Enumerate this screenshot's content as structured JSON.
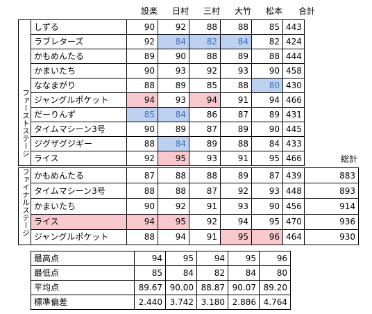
{
  "header": {
    "judges": [
      "設楽",
      "日村",
      "三村",
      "大竹",
      "松本"
    ],
    "total": "合計"
  },
  "first_stage": {
    "label": "ファーストステージ",
    "rows": [
      {
        "name": "しずる",
        "scores": [
          "90",
          "92",
          "88",
          "88",
          "85"
        ],
        "total": "443"
      },
      {
        "name": "ラブレターズ",
        "scores": [
          "92",
          "84",
          "82",
          "84",
          "82"
        ],
        "total": "424"
      },
      {
        "name": "かもめんたる",
        "scores": [
          "89",
          "90",
          "88",
          "89",
          "88"
        ],
        "total": "444"
      },
      {
        "name": "かまいたち",
        "scores": [
          "90",
          "93",
          "92",
          "93",
          "90"
        ],
        "total": "458"
      },
      {
        "name": "ななまがり",
        "scores": [
          "88",
          "89",
          "85",
          "88",
          "80"
        ],
        "total": "430"
      },
      {
        "name": "ジャングルポケット",
        "scores": [
          "94",
          "93",
          "94",
          "91",
          "94"
        ],
        "total": "466"
      },
      {
        "name": "だーりんず",
        "scores": [
          "85",
          "84",
          "86",
          "87",
          "89"
        ],
        "total": "431"
      },
      {
        "name": "タイムマシーン3号",
        "scores": [
          "90",
          "89",
          "87",
          "89",
          "90"
        ],
        "total": "445"
      },
      {
        "name": "ジグザグジギー",
        "scores": [
          "88",
          "84",
          "89",
          "88",
          "84"
        ],
        "total": "433"
      },
      {
        "name": "ライス",
        "scores": [
          "92",
          "95",
          "93",
          "91",
          "95"
        ],
        "total": "466"
      }
    ]
  },
  "final_stage": {
    "label": "ファイナルステージ",
    "grand_total_label": "総計",
    "rows": [
      {
        "name": "かもめんたる",
        "scores": [
          "87",
          "88",
          "88",
          "89",
          "87"
        ],
        "total": "439",
        "grand_total": "883"
      },
      {
        "name": "タイムマシーン3号",
        "scores": [
          "88",
          "88",
          "87",
          "92",
          "93"
        ],
        "total": "448",
        "grand_total": "893"
      },
      {
        "name": "かまいたち",
        "scores": [
          "90",
          "92",
          "91",
          "93",
          "90"
        ],
        "total": "456",
        "grand_total": "914"
      },
      {
        "name": "ライス",
        "scores": [
          "94",
          "95",
          "92",
          "94",
          "95"
        ],
        "total": "470",
        "grand_total": "936"
      },
      {
        "name": "ジャングルポケット",
        "scores": [
          "88",
          "94",
          "91",
          "95",
          "96"
        ],
        "total": "464",
        "grand_total": "930"
      }
    ]
  },
  "stats": {
    "rows": [
      {
        "label": "最高点",
        "values": [
          "94",
          "95",
          "94",
          "95",
          "96"
        ]
      },
      {
        "label": "最低点",
        "values": [
          "85",
          "84",
          "82",
          "84",
          "80"
        ]
      },
      {
        "label": "平均点",
        "values": [
          "89.67",
          "90.00",
          "88.87",
          "90.07",
          "89.20"
        ]
      },
      {
        "label": "標準偏差",
        "values": [
          "2.440",
          "3.742",
          "3.180",
          "2.886",
          "4.764"
        ]
      }
    ]
  },
  "colors": {
    "highlight_high": "#f8c8cf",
    "highlight_low": "#bed1ee",
    "highlight_low_text": "#3f6fbf"
  }
}
